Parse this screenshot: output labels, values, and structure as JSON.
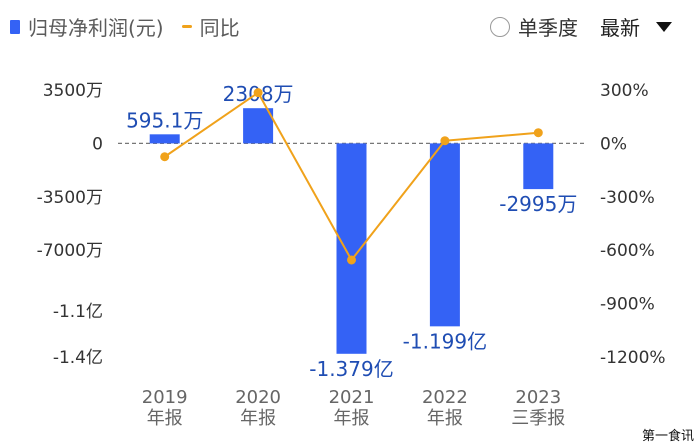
{
  "legend": {
    "bar_label": "归母净利润(元)",
    "line_label": "同比"
  },
  "controls": {
    "toggle_label": "单季度",
    "select_label": "最新"
  },
  "watermark": "第一食讯",
  "colors": {
    "bar": "#3462f5",
    "line": "#f0a21b",
    "label": "#1f4db3"
  },
  "chart_data": {
    "type": "bar",
    "categories": [
      [
        "2019",
        "年报"
      ],
      [
        "2020",
        "年报"
      ],
      [
        "2021",
        "年报"
      ],
      [
        "2022",
        "年报"
      ],
      [
        "2023",
        "三季报"
      ]
    ],
    "series": [
      {
        "name": "归母净利润(元)",
        "type": "bar",
        "axis": "left",
        "values": [
          5951000,
          23080000,
          -137900000,
          -119900000,
          -29950000
        ],
        "data_labels": [
          "595.1万",
          "2308万",
          "-1.379亿",
          "-1.199亿",
          "-2995万"
        ]
      },
      {
        "name": "同比",
        "type": "line",
        "axis": "right",
        "values": [
          -75,
          285,
          -655,
          15,
          60
        ],
        "unit": "%"
      }
    ],
    "left_axis": {
      "ticks": [
        35000000,
        0,
        -35000000,
        -70000000,
        -110000000,
        -140000000
      ],
      "tick_labels": [
        "3500万",
        "0",
        "-3500万",
        "-7000万",
        "-1.1亿",
        "-1.4亿"
      ]
    },
    "right_axis": {
      "ticks": [
        300,
        0,
        -300,
        -600,
        -900,
        -1200
      ],
      "tick_labels": [
        "300%",
        "0%",
        "-300%",
        "-600%",
        "-900%",
        "-1200%"
      ]
    },
    "zero_line": "dashed"
  }
}
